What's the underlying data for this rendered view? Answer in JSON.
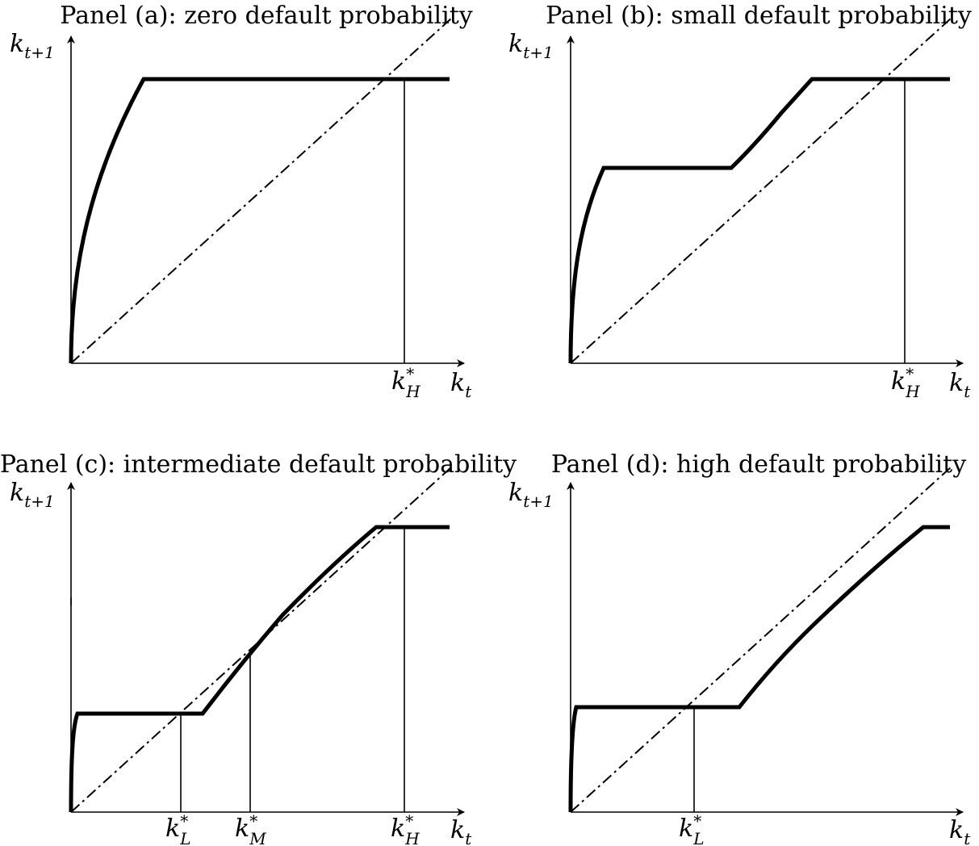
{
  "figure": {
    "panels": [
      {
        "title": "Panel (a): zero default probability",
        "ylabel": "k",
        "ylabel_sub": "t+1",
        "xlabel": "k",
        "xlabel_sub": "t",
        "markers": [
          {
            "main": "k",
            "sup": "*",
            "sub": "H"
          }
        ]
      },
      {
        "title": "Panel (b): small default probability",
        "ylabel": "k",
        "ylabel_sub": "t+1",
        "xlabel": "k",
        "xlabel_sub": "t",
        "markers": [
          {
            "main": "k",
            "sup": "*",
            "sub": "H"
          }
        ]
      },
      {
        "title": "Panel (c): intermediate default probability",
        "ylabel": "k",
        "ylabel_sub": "t+1",
        "xlabel": "k",
        "xlabel_sub": "t",
        "markers": [
          {
            "main": "k",
            "sup": "*",
            "sub": "L"
          },
          {
            "main": "k",
            "sup": "*",
            "sub": "M"
          },
          {
            "main": "k",
            "sup": "*",
            "sub": "H"
          }
        ]
      },
      {
        "title": "Panel (d): high default probability",
        "ylabel": "k",
        "ylabel_sub": "t+1",
        "xlabel": "k",
        "xlabel_sub": "t",
        "markers": [
          {
            "main": "k",
            "sup": "*",
            "sub": "L"
          }
        ]
      }
    ],
    "colors": {
      "curve": "#000000",
      "axis": "#000000",
      "diagonal": "#000000"
    }
  }
}
